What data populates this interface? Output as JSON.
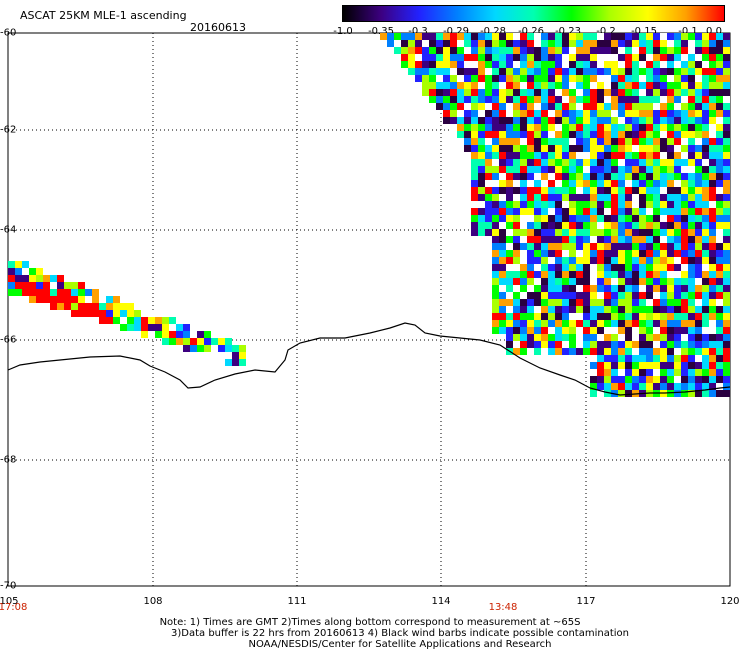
{
  "header": {
    "title": "ASCAT 25KM MLE-1 ascending",
    "date": "20160613"
  },
  "colorbar": {
    "ticks": [
      "-1.0",
      "-0.35",
      "-0.3",
      "-0.29",
      "-0.28",
      "-0.26",
      "-0.23",
      "-0.2",
      "-0.15",
      "-0.1",
      "0.0"
    ],
    "colors": [
      "#000000",
      "#3c0080",
      "#2222ff",
      "#0080ff",
      "#00d8ff",
      "#00ffb0",
      "#00ff00",
      "#aaff00",
      "#ffff00",
      "#ffa000",
      "#ff0000"
    ]
  },
  "axes": {
    "lat_labels": [
      "-60",
      "-62",
      "-64",
      "-66",
      "-68",
      "-70"
    ],
    "lon_labels": [
      "105",
      "108",
      "111",
      "114",
      "117",
      "120"
    ],
    "times": [
      "17:08",
      "13:48"
    ]
  },
  "notes": {
    "line1": "Note: 1) Times are GMT 2)Times along bottom correspond to measurement at ~65S",
    "line2": "3)Data buffer is 22 hrs from 20160613 4) Black wind barbs indicate possible contamination",
    "line3": "NOAA/NESDIS/Center for Satellite Applications and Research"
  }
}
